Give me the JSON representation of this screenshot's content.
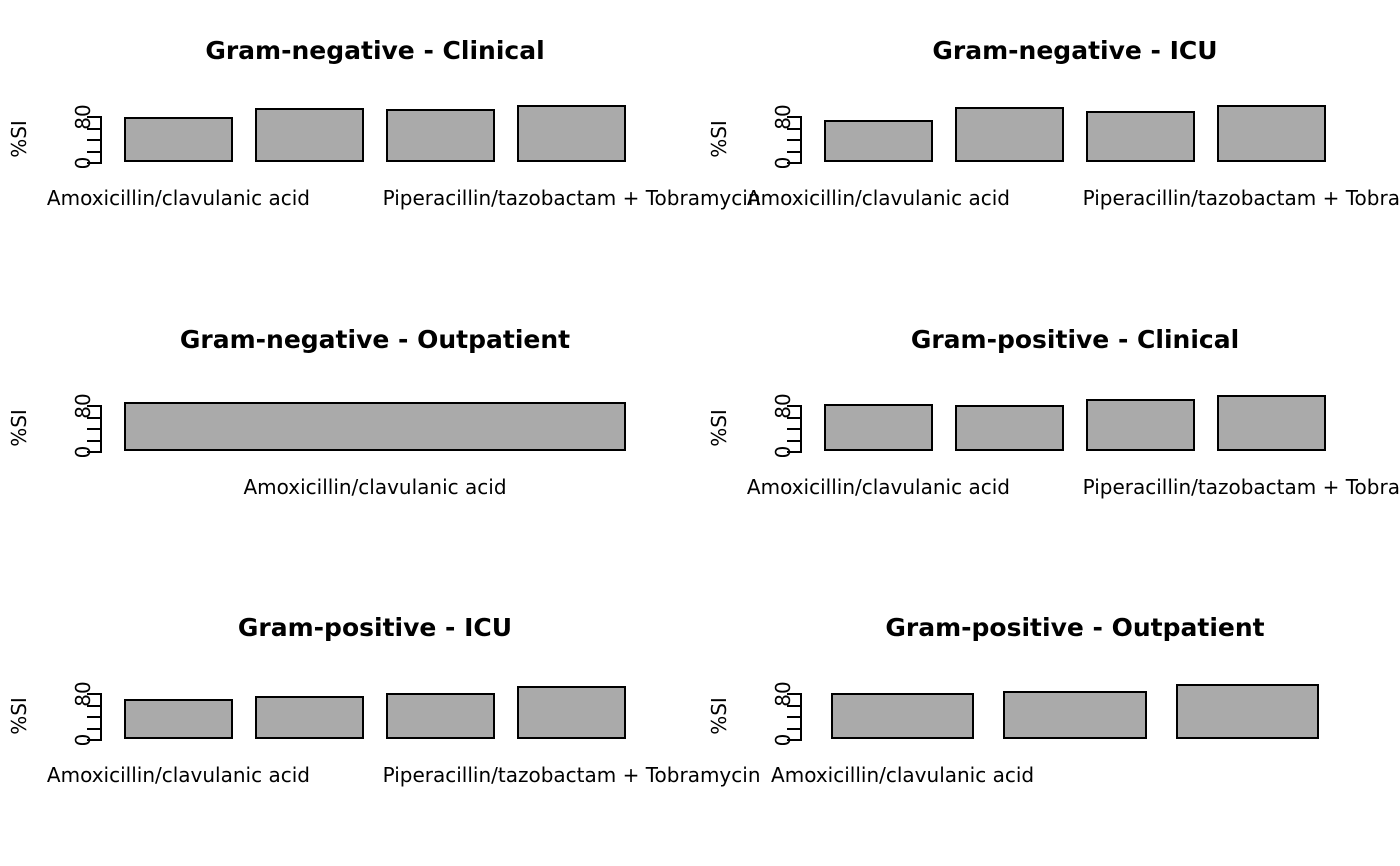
{
  "figure": {
    "background": "#ffffff",
    "bar_fill": "#aaaaaa",
    "bar_edge": "#000000",
    "axis_color": "#000000",
    "text_color": "#000000"
  },
  "chart_data": [
    {
      "type": "bar",
      "title": "Gram-negative - Clinical",
      "ylabel": "%SI",
      "ylim": [
        0,
        100
      ],
      "yticks": [
        0,
        20,
        40,
        60,
        80
      ],
      "ytick_labels": {
        "0": "0",
        "80": "80"
      },
      "categories": [
        "Amoxicillin/clavulanic acid",
        "",
        "",
        "Piperacillin/tazobactam + Tobramycin"
      ],
      "values": [
        79,
        94,
        92,
        100
      ],
      "grid": false,
      "legend": null
    },
    {
      "type": "bar",
      "title": "Gram-negative - ICU",
      "ylabel": "%SI",
      "ylim": [
        0,
        100
      ],
      "yticks": [
        0,
        20,
        40,
        60,
        80
      ],
      "ytick_labels": {
        "0": "0",
        "80": "80"
      },
      "categories": [
        "Amoxicillin/clavulanic acid",
        "",
        "",
        "Piperacillin/tazobactam + Tobramycin"
      ],
      "values": [
        73,
        96,
        89,
        100
      ],
      "grid": false,
      "legend": null
    },
    {
      "type": "bar",
      "title": "Gram-negative - Outpatient",
      "ylabel": "%SI",
      "ylim": [
        0,
        100
      ],
      "yticks": [
        0,
        20,
        40,
        60,
        80
      ],
      "ytick_labels": {
        "0": "0",
        "80": "80"
      },
      "categories": [
        "Amoxicillin/clavulanic acid"
      ],
      "values": [
        86
      ],
      "grid": false,
      "legend": null
    },
    {
      "type": "bar",
      "title": "Gram-positive - Clinical",
      "ylabel": "%SI",
      "ylim": [
        0,
        100
      ],
      "yticks": [
        0,
        20,
        40,
        60,
        80
      ],
      "ytick_labels": {
        "0": "0",
        "80": "80"
      },
      "categories": [
        "Amoxicillin/clavulanic acid",
        "",
        "",
        "Piperacillin/tazobactam + Tobramycin"
      ],
      "values": [
        82,
        80,
        90,
        97
      ],
      "grid": false,
      "legend": null
    },
    {
      "type": "bar",
      "title": "Gram-positive - ICU",
      "ylabel": "%SI",
      "ylim": [
        0,
        100
      ],
      "yticks": [
        0,
        20,
        40,
        60,
        80
      ],
      "ytick_labels": {
        "0": "0",
        "80": "80"
      },
      "categories": [
        "Amoxicillin/clavulanic acid",
        "",
        "",
        "Piperacillin/tazobactam + Tobramycin"
      ],
      "values": [
        70,
        74,
        80,
        93
      ],
      "grid": false,
      "legend": null
    },
    {
      "type": "bar",
      "title": "Gram-positive - Outpatient",
      "ylabel": "%SI",
      "ylim": [
        0,
        100
      ],
      "yticks": [
        0,
        20,
        40,
        60,
        80
      ],
      "ytick_labels": {
        "0": "0",
        "80": "80"
      },
      "categories": [
        "Amoxicillin/clavulanic acid",
        "",
        ""
      ],
      "values": [
        80,
        83,
        96
      ],
      "grid": false,
      "legend": null
    }
  ]
}
